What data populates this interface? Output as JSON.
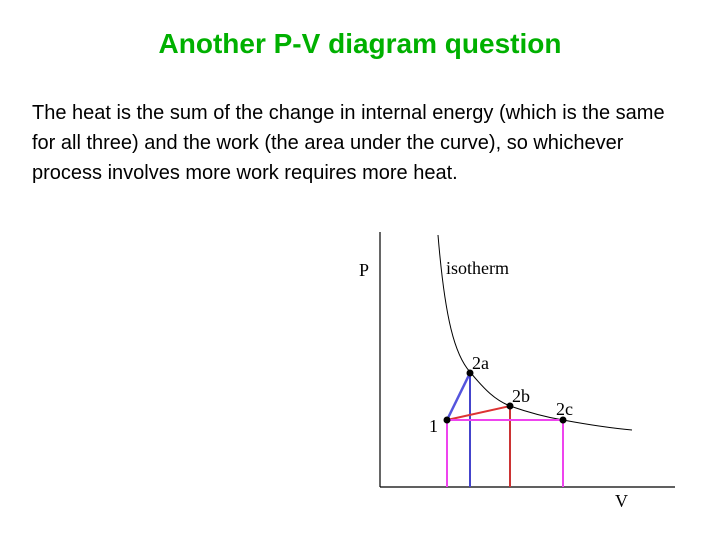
{
  "header": {
    "title": "Another P-V diagram question"
  },
  "body": {
    "text": "The heat is the sum of the change in internal energy (which is the same for all three) and the work (the area under the curve), so whichever process involves more work requires more heat."
  },
  "diagram": {
    "y_axis_label": "P",
    "x_axis_label": "V",
    "curve_label": "isotherm",
    "points": [
      {
        "label": "1"
      },
      {
        "label": "2a"
      },
      {
        "label": "2b"
      },
      {
        "label": "2c"
      }
    ]
  }
}
